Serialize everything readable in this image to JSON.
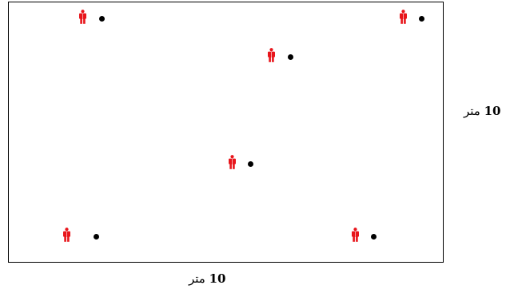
{
  "diagram": {
    "person_color": "#e8151b",
    "dot_color": "#000000",
    "stations": [
      {
        "person_icon": "person-icon"
      },
      {
        "person_icon": "person-icon"
      },
      {
        "person_icon": "person-icon"
      },
      {
        "person_icon": "person-icon"
      },
      {
        "person_icon": "person-icon"
      },
      {
        "person_icon": "person-icon"
      }
    ]
  },
  "labels": {
    "height_number": "10",
    "height_unit": "متر",
    "width_number": "10",
    "width_unit": "متر"
  }
}
